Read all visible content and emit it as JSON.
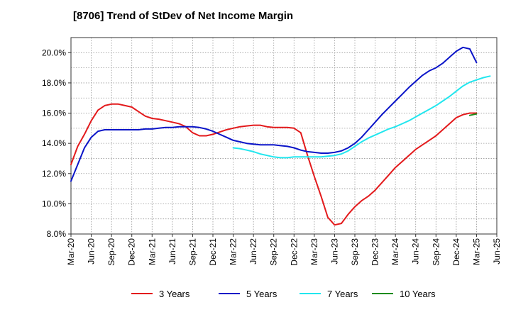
{
  "chart_data": {
    "type": "line",
    "title": "[8706]  Trend of StDev of Net Income Margin",
    "xlabel": "",
    "ylabel": "",
    "x_ticks": [
      "Mar-20",
      "Jun-20",
      "Sep-20",
      "Dec-20",
      "Mar-21",
      "Jun-21",
      "Sep-21",
      "Dec-21",
      "Mar-22",
      "Jun-22",
      "Sep-22",
      "Dec-22",
      "Mar-23",
      "Jun-23",
      "Sep-23",
      "Dec-23",
      "Mar-24",
      "Jun-24",
      "Sep-24",
      "Dec-24",
      "Mar-25",
      "Jun-25"
    ],
    "y_ticks": [
      "8.0%",
      "10.0%",
      "12.0%",
      "14.0%",
      "16.0%",
      "18.0%",
      "20.0%"
    ],
    "ylim": [
      8.0,
      21.0
    ],
    "grid": true,
    "legend_position": "bottom",
    "series": [
      {
        "name": "3 Years",
        "color": "#e31a1c",
        "points": [
          [
            "Mar-20",
            12.6
          ],
          [
            "Apr-20",
            13.8
          ],
          [
            "May-20",
            14.6
          ],
          [
            "Jun-20",
            15.5
          ],
          [
            "Jul-20",
            16.2
          ],
          [
            "Aug-20",
            16.5
          ],
          [
            "Sep-20",
            16.6
          ],
          [
            "Oct-20",
            16.6
          ],
          [
            "Nov-20",
            16.5
          ],
          [
            "Dec-20",
            16.4
          ],
          [
            "Jan-21",
            16.1
          ],
          [
            "Feb-21",
            15.8
          ],
          [
            "Mar-21",
            15.65
          ],
          [
            "Apr-21",
            15.6
          ],
          [
            "May-21",
            15.5
          ],
          [
            "Jun-21",
            15.4
          ],
          [
            "Jul-21",
            15.3
          ],
          [
            "Aug-21",
            15.1
          ],
          [
            "Sep-21",
            14.7
          ],
          [
            "Oct-21",
            14.5
          ],
          [
            "Nov-21",
            14.5
          ],
          [
            "Dec-21",
            14.6
          ],
          [
            "Jan-22",
            14.75
          ],
          [
            "Feb-22",
            14.9
          ],
          [
            "Mar-22",
            15.0
          ],
          [
            "Apr-22",
            15.1
          ],
          [
            "May-22",
            15.15
          ],
          [
            "Jun-22",
            15.2
          ],
          [
            "Jul-22",
            15.2
          ],
          [
            "Aug-22",
            15.1
          ],
          [
            "Sep-22",
            15.05
          ],
          [
            "Oct-22",
            15.05
          ],
          [
            "Nov-22",
            15.05
          ],
          [
            "Dec-22",
            15.0
          ],
          [
            "Jan-23",
            14.7
          ],
          [
            "Feb-23",
            13.2
          ],
          [
            "Mar-23",
            11.8
          ],
          [
            "Apr-23",
            10.5
          ],
          [
            "May-23",
            9.1
          ],
          [
            "Jun-23",
            8.6
          ],
          [
            "Jul-23",
            8.7
          ],
          [
            "Aug-23",
            9.3
          ],
          [
            "Sep-23",
            9.8
          ],
          [
            "Oct-23",
            10.2
          ],
          [
            "Nov-23",
            10.5
          ],
          [
            "Dec-23",
            10.9
          ],
          [
            "Jan-24",
            11.4
          ],
          [
            "Feb-24",
            11.9
          ],
          [
            "Mar-24",
            12.4
          ],
          [
            "Apr-24",
            12.8
          ],
          [
            "May-24",
            13.2
          ],
          [
            "Jun-24",
            13.6
          ],
          [
            "Jul-24",
            13.9
          ],
          [
            "Aug-24",
            14.2
          ],
          [
            "Sep-24",
            14.5
          ],
          [
            "Oct-24",
            14.9
          ],
          [
            "Nov-24",
            15.3
          ],
          [
            "Dec-24",
            15.7
          ],
          [
            "Jan-25",
            15.9
          ],
          [
            "Feb-25",
            16.0
          ],
          [
            "Mar-25",
            16.0
          ]
        ]
      },
      {
        "name": "5 Years",
        "color": "#0a14c8",
        "points": [
          [
            "Mar-20",
            11.5
          ],
          [
            "Apr-20",
            12.6
          ],
          [
            "May-20",
            13.7
          ],
          [
            "Jun-20",
            14.4
          ],
          [
            "Jul-20",
            14.8
          ],
          [
            "Aug-20",
            14.9
          ],
          [
            "Sep-20",
            14.9
          ],
          [
            "Oct-20",
            14.9
          ],
          [
            "Nov-20",
            14.9
          ],
          [
            "Dec-20",
            14.9
          ],
          [
            "Jan-21",
            14.9
          ],
          [
            "Feb-21",
            14.95
          ],
          [
            "Mar-21",
            14.95
          ],
          [
            "Apr-21",
            15.0
          ],
          [
            "May-21",
            15.05
          ],
          [
            "Jun-21",
            15.05
          ],
          [
            "Jul-21",
            15.1
          ],
          [
            "Aug-21",
            15.1
          ],
          [
            "Sep-21",
            15.1
          ],
          [
            "Oct-21",
            15.05
          ],
          [
            "Nov-21",
            14.95
          ],
          [
            "Dec-21",
            14.8
          ],
          [
            "Jan-22",
            14.6
          ],
          [
            "Feb-22",
            14.4
          ],
          [
            "Mar-22",
            14.2
          ],
          [
            "Apr-22",
            14.1
          ],
          [
            "May-22",
            14.0
          ],
          [
            "Jun-22",
            13.95
          ],
          [
            "Jul-22",
            13.9
          ],
          [
            "Aug-22",
            13.9
          ],
          [
            "Sep-22",
            13.9
          ],
          [
            "Oct-22",
            13.85
          ],
          [
            "Nov-22",
            13.8
          ],
          [
            "Dec-22",
            13.7
          ],
          [
            "Jan-23",
            13.55
          ],
          [
            "Feb-23",
            13.45
          ],
          [
            "Mar-23",
            13.4
          ],
          [
            "Apr-23",
            13.35
          ],
          [
            "May-23",
            13.35
          ],
          [
            "Jun-23",
            13.4
          ],
          [
            "Jul-23",
            13.5
          ],
          [
            "Aug-23",
            13.7
          ],
          [
            "Sep-23",
            14.0
          ],
          [
            "Oct-23",
            14.4
          ],
          [
            "Nov-23",
            14.9
          ],
          [
            "Dec-23",
            15.4
          ],
          [
            "Jan-24",
            15.9
          ],
          [
            "Feb-24",
            16.35
          ],
          [
            "Mar-24",
            16.8
          ],
          [
            "Apr-24",
            17.25
          ],
          [
            "May-24",
            17.7
          ],
          [
            "Jun-24",
            18.1
          ],
          [
            "Jul-24",
            18.5
          ],
          [
            "Aug-24",
            18.8
          ],
          [
            "Sep-24",
            19.0
          ],
          [
            "Oct-24",
            19.3
          ],
          [
            "Nov-24",
            19.7
          ],
          [
            "Dec-24",
            20.1
          ],
          [
            "Jan-25",
            20.35
          ],
          [
            "Feb-25",
            20.25
          ],
          [
            "Mar-25",
            19.35
          ]
        ]
      },
      {
        "name": "7 Years",
        "color": "#22e6ee",
        "points": [
          [
            "Mar-22",
            13.7
          ],
          [
            "Apr-22",
            13.65
          ],
          [
            "May-22",
            13.55
          ],
          [
            "Jun-22",
            13.45
          ],
          [
            "Jul-22",
            13.3
          ],
          [
            "Aug-22",
            13.2
          ],
          [
            "Sep-22",
            13.1
          ],
          [
            "Oct-22",
            13.05
          ],
          [
            "Nov-22",
            13.05
          ],
          [
            "Dec-22",
            13.1
          ],
          [
            "Jan-23",
            13.1
          ],
          [
            "Feb-23",
            13.1
          ],
          [
            "Mar-23",
            13.1
          ],
          [
            "Apr-23",
            13.1
          ],
          [
            "May-23",
            13.15
          ],
          [
            "Jun-23",
            13.2
          ],
          [
            "Jul-23",
            13.3
          ],
          [
            "Aug-23",
            13.5
          ],
          [
            "Sep-23",
            13.8
          ],
          [
            "Oct-23",
            14.1
          ],
          [
            "Nov-23",
            14.35
          ],
          [
            "Dec-23",
            14.55
          ],
          [
            "Jan-24",
            14.75
          ],
          [
            "Feb-24",
            14.95
          ],
          [
            "Mar-24",
            15.1
          ],
          [
            "Apr-24",
            15.3
          ],
          [
            "May-24",
            15.5
          ],
          [
            "Jun-24",
            15.75
          ],
          [
            "Jul-24",
            16.0
          ],
          [
            "Aug-24",
            16.25
          ],
          [
            "Sep-24",
            16.5
          ],
          [
            "Oct-24",
            16.8
          ],
          [
            "Nov-24",
            17.1
          ],
          [
            "Dec-24",
            17.45
          ],
          [
            "Jan-25",
            17.8
          ],
          [
            "Feb-25",
            18.05
          ],
          [
            "Mar-25",
            18.2
          ],
          [
            "Apr-25",
            18.35
          ],
          [
            "May-25",
            18.45
          ]
        ]
      },
      {
        "name": "10 Years",
        "color": "#1e8c1e",
        "points": [
          [
            "Feb-25",
            15.85
          ],
          [
            "Mar-25",
            15.95
          ]
        ]
      }
    ]
  }
}
